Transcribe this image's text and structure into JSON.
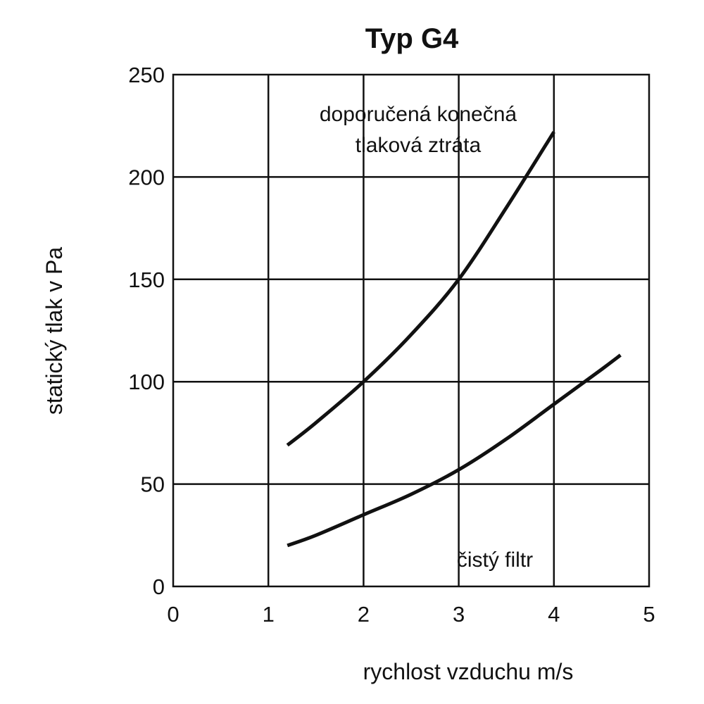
{
  "chart_data": {
    "type": "line",
    "title": "Typ G4",
    "xlabel": "rychlost vzduchu m/s",
    "ylabel": "statický tlak v Pa",
    "xlim": [
      0,
      5
    ],
    "ylim": [
      0,
      250
    ],
    "xticks": [
      0,
      1,
      2,
      3,
      4,
      5
    ],
    "yticks": [
      0,
      50,
      100,
      150,
      200,
      250
    ],
    "grid": true,
    "series": [
      {
        "values": [
          [
            1.2,
            69
          ],
          [
            1.5,
            80
          ],
          [
            2.0,
            100
          ],
          [
            2.5,
            123
          ],
          [
            3.0,
            150
          ],
          [
            3.5,
            185
          ],
          [
            4.0,
            222
          ]
        ]
      },
      {
        "values": [
          [
            1.2,
            20
          ],
          [
            1.5,
            25
          ],
          [
            2.0,
            35
          ],
          [
            2.5,
            45
          ],
          [
            3.0,
            57
          ],
          [
            3.5,
            72
          ],
          [
            4.0,
            89
          ],
          [
            4.5,
            106
          ],
          [
            4.7,
            113
          ]
        ]
      }
    ],
    "annotations": [
      {
        "lines": [
          "doporučená konečná",
          "tlaková ztráta"
        ]
      },
      {
        "lines": [
          "čistý filtr"
        ]
      }
    ]
  }
}
